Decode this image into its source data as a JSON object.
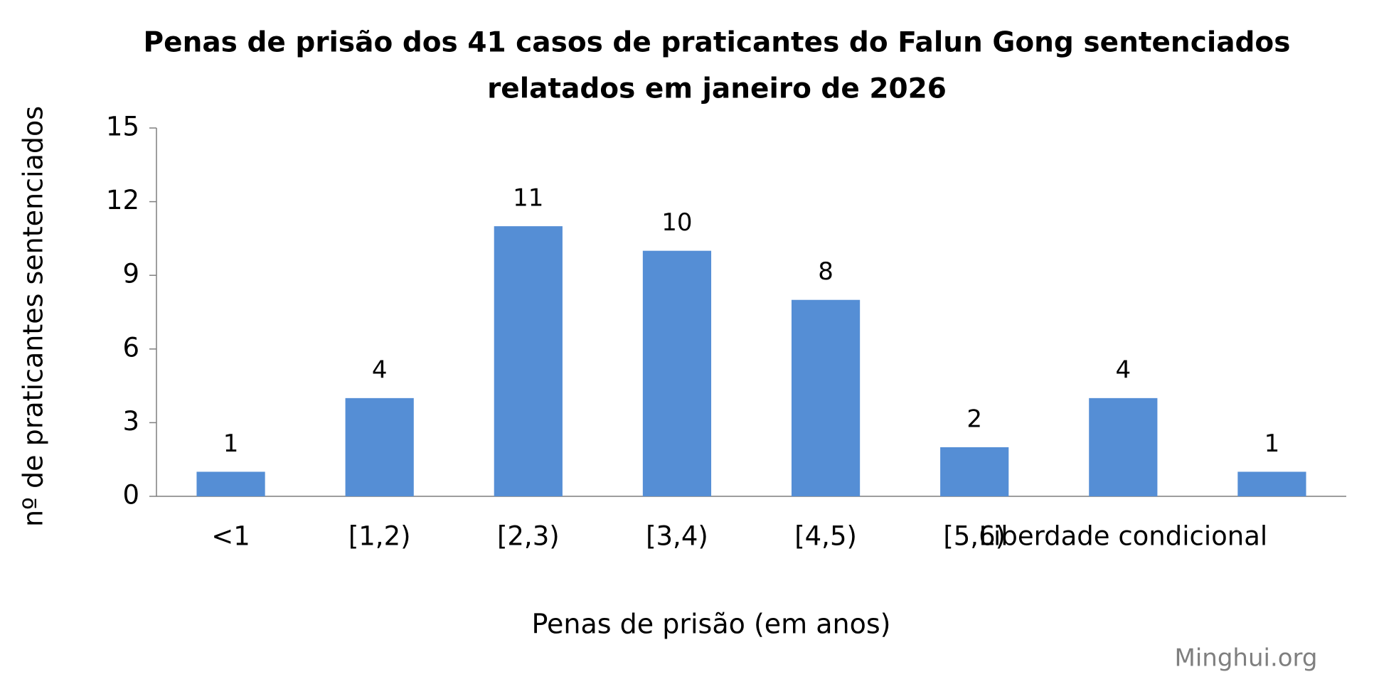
{
  "chart_data": {
    "type": "bar",
    "title": [
      "Penas de prisão dos 41 casos de praticantes do Falun Gong sentenciados",
      "relatados em janeiro de 2026"
    ],
    "x_label": "Penas de prisão (em anos)",
    "y_label": "nº de praticantes sentenciados",
    "watermark": "Minghui.org",
    "categories": [
      "<1",
      "[1,2)",
      "[2,3)",
      "[3,4)",
      "[4,5)",
      "[5,6)",
      "Liberdade condicional",
      null
    ],
    "values": [
      1,
      4,
      11,
      10,
      8,
      2,
      4,
      1
    ],
    "color": "#558ed5",
    "ylim": [
      0,
      15
    ],
    "yticks": [
      0,
      3,
      6,
      9,
      12,
      15
    ],
    "grid": false
  }
}
